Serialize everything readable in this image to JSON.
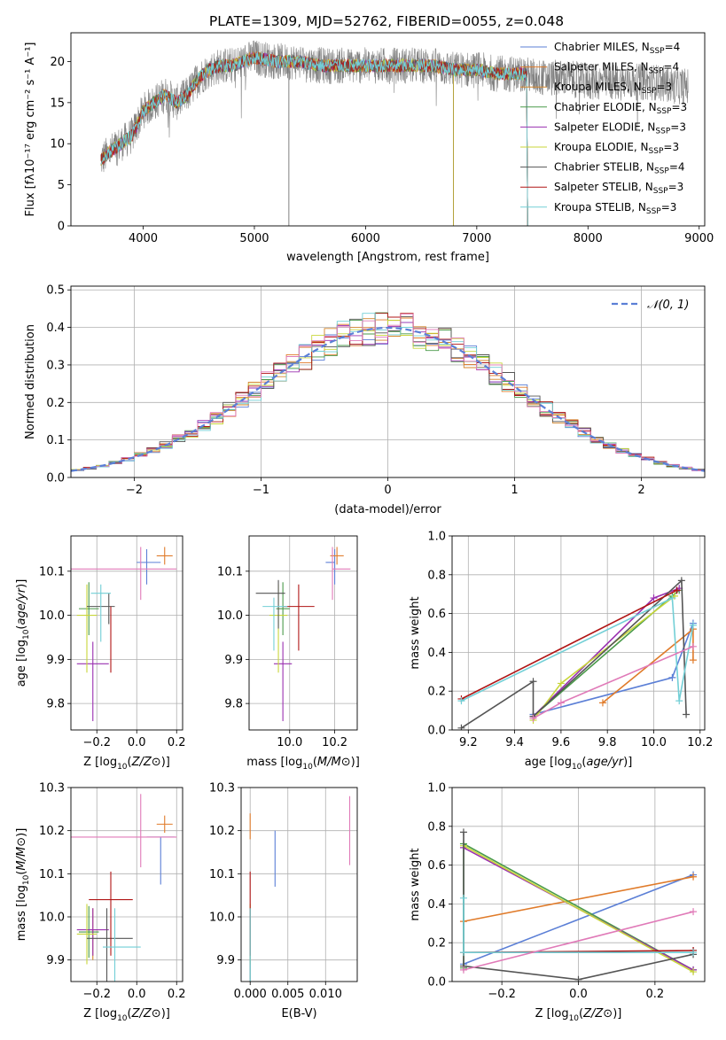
{
  "title": "PLATE=1309, MJD=52762, FIBERID=0055, z=0.048",
  "colors": {
    "Chabrier MILES": "#5b7fd6",
    "Salpeter MILES": "#e07b2a",
    "Kroupa MILES": "#d4862c",
    "Chabrier ELODIE": "#4a9a4a",
    "Salpeter ELODIE": "#9a30b0",
    "Kroupa ELODIE": "#c8d63a",
    "Chabrier STELIB": "#555555",
    "Salpeter STELIB": "#b01515",
    "Kroupa STELIB": "#72cfd6",
    "extra_pink": "#e07ab8",
    "data_gray": "#808080",
    "normal_curve": "#5b7fd6"
  },
  "chart_data": [
    {
      "id": "spectrum",
      "type": "line",
      "xlabel": "wavelength [Angstrom, rest frame]",
      "ylabel": "Flux [fλ10⁻¹⁷ erg cm⁻² s⁻¹ A⁻¹]",
      "xlim": [
        3350,
        9050
      ],
      "ylim": [
        0,
        23.5
      ],
      "xticks": [
        4000,
        5000,
        6000,
        7000,
        8000,
        9000
      ],
      "yticks": [
        0,
        5,
        10,
        15,
        20
      ],
      "legend_position": "right",
      "legend": [
        {
          "name": "Chabrier MILES",
          "nssp": "4"
        },
        {
          "name": "Salpeter MILES",
          "nssp": "4"
        },
        {
          "name": "Kroupa MILES",
          "nssp": "3"
        },
        {
          "name": "Chabrier ELODIE",
          "nssp": "3"
        },
        {
          "name": "Salpeter ELODIE",
          "nssp": "3"
        },
        {
          "name": "Kroupa ELODIE",
          "nssp": "3"
        },
        {
          "name": "Chabrier STELIB",
          "nssp": "4"
        },
        {
          "name": "Salpeter STELIB",
          "nssp": "3"
        },
        {
          "name": "Kroupa STELIB",
          "nssp": "3"
        }
      ],
      "continuum": {
        "x": [
          3620,
          3700,
          3800,
          3900,
          4000,
          4100,
          4200,
          4300,
          4400,
          4500,
          4600,
          4700,
          4800,
          4900,
          5000,
          5200,
          5400,
          5600,
          5800,
          6000,
          6200,
          6400,
          6600,
          6800,
          7000,
          7200,
          7400,
          7600,
          7800,
          8000,
          8200,
          8400,
          8600,
          8800
        ],
        "y": [
          8,
          9,
          10,
          11,
          14,
          15,
          16,
          15,
          16,
          18,
          19,
          19.5,
          19.5,
          20,
          20.5,
          20,
          20,
          19.5,
          19.5,
          19.5,
          19.5,
          19.5,
          19.5,
          19,
          19,
          18.5,
          18.5,
          18,
          18,
          17.5,
          17.5,
          17.5,
          17.5,
          17
        ]
      },
      "data_range": [
        3620,
        8900
      ],
      "model_range": [
        3620,
        7450
      ]
    },
    {
      "id": "residuals",
      "type": "histogram",
      "xlabel": "(data-model)/error",
      "ylabel": "Normed distribution",
      "xlim": [
        -2.5,
        2.5
      ],
      "ylim": [
        0,
        0.51
      ],
      "xticks": [
        -2,
        -1,
        0,
        1,
        2
      ],
      "yticks": [
        0,
        0.1,
        0.2,
        0.3,
        0.4,
        0.5
      ],
      "legend": [
        {
          "name": "𝒩(0, 1)"
        }
      ],
      "legend_position": "top-right",
      "bins": 50
    },
    {
      "id": "age-vs-Z",
      "type": "errorbar",
      "xlabel": "Z [log10(Z/Z⊙)]",
      "ylabel": "age  [log10(age/yr)]",
      "xlim": [
        -0.33,
        0.23
      ],
      "ylim": [
        9.74,
        10.18
      ],
      "xticks": [
        -0.2,
        0.0,
        0.2
      ],
      "yticks": [
        9.8,
        9.9,
        10.0,
        10.1
      ],
      "points": [
        {
          "model": "Chabrier MILES",
          "x": 0.05,
          "xerr": [
            0.05,
            0.07
          ],
          "y": 10.12,
          "yerr": [
            0.05,
            0.03
          ]
        },
        {
          "model": "Salpeter MILES",
          "x": 0.14,
          "xerr": [
            0.04,
            0.04
          ],
          "y": 10.135,
          "yerr": [
            0.02,
            0.02
          ]
        },
        {
          "model": "Kroupa MILES",
          "x": -0.13,
          "xerr": [
            0.0,
            0.0
          ],
          "y": 10.0,
          "yerr": [
            0.0,
            0.0
          ]
        },
        {
          "model": "Chabrier ELODIE",
          "x": -0.24,
          "xerr": [
            0.05,
            0.05
          ],
          "y": 10.015,
          "yerr": [
            0.06,
            0.06
          ]
        },
        {
          "model": "Salpeter ELODIE",
          "x": -0.22,
          "xerr": [
            0.08,
            0.08
          ],
          "y": 9.89,
          "yerr": [
            0.13,
            0.05
          ]
        },
        {
          "model": "Kroupa ELODIE",
          "x": -0.25,
          "xerr": [
            0.05,
            0.05
          ],
          "y": 10.0,
          "yerr": [
            0.13,
            0.07
          ]
        },
        {
          "model": "Chabrier STELIB",
          "x": -0.14,
          "xerr": [
            0.11,
            0.03
          ],
          "y": 10.02,
          "yerr": [
            0.04,
            0.03
          ]
        },
        {
          "model": "Salpeter STELIB",
          "x": -0.13,
          "xerr": [
            0.0,
            0.0
          ],
          "y": 9.97,
          "yerr": [
            0.1,
            0.05
          ]
        },
        {
          "model": "Kroupa STELIB",
          "x": -0.18,
          "xerr": [
            0.05,
            0.05
          ],
          "y": 10.05,
          "yerr": [
            0.11,
            0.02
          ]
        },
        {
          "model": "extra",
          "x": 0.02,
          "xerr": [
            0.36,
            0.18
          ],
          "y": 10.105,
          "yerr": [
            0.07,
            0.05
          ]
        }
      ]
    },
    {
      "id": "age-vs-mass",
      "type": "errorbar",
      "xlabel": "mass [log10(M/M⊙)]",
      "ylabel": "",
      "xlim": [
        9.82,
        10.3
      ],
      "ylim": [
        9.74,
        10.18
      ],
      "xticks": [
        10.0,
        10.2
      ],
      "yticks": [
        9.8,
        9.9,
        10.0,
        10.1
      ],
      "points": [
        {
          "model": "Chabrier MILES",
          "x": 10.2,
          "xerr": [
            0.04,
            0.0
          ],
          "y": 10.12,
          "yerr": [
            0.05,
            0.03
          ]
        },
        {
          "model": "Salpeter MILES",
          "x": 10.21,
          "xerr": [
            0.03,
            0.03
          ],
          "y": 10.135,
          "yerr": [
            0.02,
            0.02
          ]
        },
        {
          "model": "Kroupa MILES",
          "x": 9.95,
          "xerr": [
            0.0,
            0.0
          ],
          "y": 10.0,
          "yerr": [
            0.0,
            0.0
          ]
        },
        {
          "model": "Chabrier ELODIE",
          "x": 9.97,
          "xerr": [
            0.03,
            0.03
          ],
          "y": 10.015,
          "yerr": [
            0.06,
            0.06
          ]
        },
        {
          "model": "Salpeter ELODIE",
          "x": 9.97,
          "xerr": [
            0.04,
            0.04
          ],
          "y": 9.89,
          "yerr": [
            0.13,
            0.05
          ]
        },
        {
          "model": "Kroupa ELODIE",
          "x": 9.95,
          "xerr": [
            0.04,
            0.04
          ],
          "y": 10.0,
          "yerr": [
            0.13,
            0.07
          ]
        },
        {
          "model": "Chabrier STELIB",
          "x": 9.95,
          "xerr": [
            0.1,
            0.03
          ],
          "y": 10.05,
          "yerr": [
            0.08,
            0.03
          ]
        },
        {
          "model": "Salpeter STELIB",
          "x": 10.04,
          "xerr": [
            0.07,
            0.07
          ],
          "y": 10.02,
          "yerr": [
            0.1,
            0.05
          ]
        },
        {
          "model": "Kroupa STELIB",
          "x": 9.93,
          "xerr": [
            0.05,
            0.06
          ],
          "y": 10.02,
          "yerr": [
            0.1,
            0.02
          ]
        },
        {
          "model": "extra",
          "x": 10.19,
          "xerr": [
            0.0,
            0.08
          ],
          "y": 10.105,
          "yerr": [
            0.07,
            0.05
          ]
        }
      ]
    },
    {
      "id": "weight-vs-age",
      "type": "line",
      "xlabel": "age  [log10(age/yr)]",
      "ylabel": "mass weight",
      "xlim": [
        9.13,
        10.22
      ],
      "ylim": [
        0,
        1.0
      ],
      "xticks": [
        9.2,
        9.4,
        9.6,
        9.8,
        10.0,
        10.2
      ],
      "yticks": [
        0.0,
        0.2,
        0.4,
        0.6,
        0.8,
        1.0
      ],
      "series": [
        {
          "model": "Chabrier MILES",
          "x": [
            9.48,
            10.08,
            10.17
          ],
          "y": [
            0.08,
            0.27,
            0.55
          ]
        },
        {
          "model": "Salpeter MILES",
          "x": [
            9.78,
            10.17,
            10.17
          ],
          "y": [
            0.14,
            0.52,
            0.36
          ]
        },
        {
          "model": "Chabrier ELODIE",
          "x": [
            9.48,
            10.08,
            10.11
          ],
          "y": [
            0.07,
            0.69,
            0.72
          ]
        },
        {
          "model": "Salpeter ELODIE",
          "x": [
            9.48,
            10.0,
            10.11
          ],
          "y": [
            0.07,
            0.68,
            0.73
          ]
        },
        {
          "model": "Kroupa ELODIE",
          "x": [
            9.48,
            9.6,
            10.09
          ],
          "y": [
            0.05,
            0.24,
            0.69
          ]
        },
        {
          "model": "Chabrier STELIB",
          "x": [
            9.17,
            9.48,
            9.48,
            10.12,
            10.14
          ],
          "y": [
            0.01,
            0.25,
            0.07,
            0.77,
            0.08
          ]
        },
        {
          "model": "Salpeter STELIB",
          "x": [
            9.17,
            10.1
          ],
          "y": [
            0.16,
            0.72
          ]
        },
        {
          "model": "Kroupa STELIB",
          "x": [
            9.17,
            10.08,
            10.11,
            10.17
          ],
          "y": [
            0.15,
            0.68,
            0.15,
            0.54
          ]
        },
        {
          "model": "extra",
          "x": [
            9.48,
            9.6,
            10.17
          ],
          "y": [
            0.06,
            0.14,
            0.43
          ]
        }
      ]
    },
    {
      "id": "mass-vs-Z",
      "type": "errorbar",
      "xlabel": "Z [log10(Z/Z⊙)]",
      "ylabel": "mass [log10(M/M⊙)]",
      "xlim": [
        -0.33,
        0.23
      ],
      "ylim": [
        9.85,
        10.3
      ],
      "xticks": [
        -0.2,
        0.0,
        0.2
      ],
      "yticks": [
        9.9,
        10.0,
        10.1,
        10.2,
        10.3
      ],
      "points": [
        {
          "model": "Chabrier MILES",
          "x": 0.12,
          "xerr": [
            0.07,
            0.07
          ],
          "y": 10.185,
          "yerr": [
            0.11,
            0.0
          ]
        },
        {
          "model": "Salpeter MILES",
          "x": 0.14,
          "xerr": [
            0.04,
            0.04
          ],
          "y": 10.215,
          "yerr": [
            0.02,
            0.02
          ]
        },
        {
          "model": "Kroupa MILES",
          "x": -0.22,
          "xerr": [
            0.03,
            0.03
          ],
          "y": 9.97,
          "yerr": [
            0.07,
            0.05
          ]
        },
        {
          "model": "Chabrier ELODIE",
          "x": -0.24,
          "xerr": [
            0.05,
            0.05
          ],
          "y": 9.965,
          "yerr": [
            0.06,
            0.06
          ]
        },
        {
          "model": "Salpeter ELODIE",
          "x": -0.22,
          "xerr": [
            0.08,
            0.08
          ],
          "y": 9.97,
          "yerr": [
            0.06,
            0.05
          ]
        },
        {
          "model": "Kroupa ELODIE",
          "x": -0.25,
          "xerr": [
            0.05,
            0.05
          ],
          "y": 9.96,
          "yerr": [
            0.07,
            0.07
          ]
        },
        {
          "model": "Chabrier STELIB",
          "x": -0.15,
          "xerr": [
            0.1,
            0.13
          ],
          "y": 9.95,
          "yerr": [
            0.1,
            0.07
          ]
        },
        {
          "model": "Salpeter STELIB",
          "x": -0.13,
          "xerr": [
            0.11,
            0.11
          ],
          "y": 10.04,
          "yerr": [
            0.13,
            0.065
          ]
        },
        {
          "model": "Kroupa STELIB",
          "x": -0.11,
          "xerr": [
            0.06,
            0.13
          ],
          "y": 9.93,
          "yerr": [
            0.09,
            0.09
          ]
        },
        {
          "model": "extra",
          "x": 0.02,
          "xerr": [
            0.36,
            0.18
          ],
          "y": 10.185,
          "yerr": [
            0.07,
            0.1
          ]
        }
      ]
    },
    {
      "id": "mass-vs-EBV",
      "type": "errorbar",
      "xlabel": "E(B-V)",
      "ylabel": "",
      "xlim": [
        -0.0012,
        0.0142
      ],
      "ylim": [
        9.85,
        10.3
      ],
      "xticks": [
        0.0,
        0.005,
        0.01
      ],
      "yticks": [
        9.9,
        10.0,
        10.1,
        10.2,
        10.3
      ],
      "points": [
        {
          "model": "Chabrier MILES",
          "x": 0.0033,
          "xerr": [
            0.0,
            0.0
          ],
          "y": 10.14,
          "yerr": [
            0.07,
            0.06
          ]
        },
        {
          "model": "Salpeter MILES",
          "x": 0.0,
          "xerr": [
            0.0,
            0.0
          ],
          "y": 10.21,
          "yerr": [
            0.03,
            0.03
          ]
        },
        {
          "model": "Salpeter ELODIE",
          "x": 0.0,
          "xerr": [
            0.0,
            0.0
          ],
          "y": 9.97,
          "yerr": [
            0.06,
            0.05
          ]
        },
        {
          "model": "Kroupa ELODIE",
          "x": 0.0,
          "xerr": [
            0.0,
            0.0
          ],
          "y": 9.96,
          "yerr": [
            0.07,
            0.07
          ]
        },
        {
          "model": "Chabrier STELIB",
          "x": 0.0,
          "xerr": [
            0.0,
            0.0
          ],
          "y": 9.95,
          "yerr": [
            0.1,
            0.07
          ]
        },
        {
          "model": "Salpeter STELIB",
          "x": 0.0,
          "xerr": [
            0.0,
            0.0
          ],
          "y": 10.04,
          "yerr": [
            0.13,
            0.065
          ]
        },
        {
          "model": "Kroupa STELIB",
          "x": 0.0,
          "xerr": [
            0.0,
            0.0
          ],
          "y": 9.93,
          "yerr": [
            0.09,
            0.09
          ]
        },
        {
          "model": "extra",
          "x": 0.0132,
          "xerr": [
            0.0,
            0.0
          ],
          "y": 10.2,
          "yerr": [
            0.08,
            0.08
          ]
        }
      ]
    },
    {
      "id": "weight-vs-Z",
      "type": "line",
      "xlabel": "Z [log10(Z/Z⊙)]",
      "ylabel": "mass weight",
      "xlim": [
        -0.33,
        0.33
      ],
      "ylim": [
        0,
        1.0
      ],
      "xticks": [
        -0.2,
        0.0,
        0.2
      ],
      "yticks": [
        0.0,
        0.2,
        0.4,
        0.6,
        0.8,
        1.0
      ],
      "series": [
        {
          "model": "Chabrier MILES",
          "x": [
            -0.3,
            0.3
          ],
          "y": [
            0.09,
            0.55
          ]
        },
        {
          "model": "Salpeter MILES",
          "x": [
            -0.3,
            0.3
          ],
          "y": [
            0.31,
            0.54
          ]
        },
        {
          "model": "Chabrier ELODIE",
          "x": [
            -0.3,
            -0.3,
            0.3
          ],
          "y": [
            0.07,
            0.71,
            0.06
          ]
        },
        {
          "model": "Salpeter ELODIE",
          "x": [
            -0.3,
            0.3
          ],
          "y": [
            0.69,
            0.06
          ]
        },
        {
          "model": "Kroupa ELODIE",
          "x": [
            -0.3,
            0.3
          ],
          "y": [
            0.7,
            0.05
          ]
        },
        {
          "model": "Chabrier STELIB",
          "x": [
            -0.3,
            -0.3,
            0.0,
            0.3,
            0.3
          ],
          "y": [
            0.77,
            0.08,
            0.01,
            0.14,
            0.16
          ]
        },
        {
          "model": "Salpeter STELIB",
          "x": [
            -0.3,
            0.3
          ],
          "y": [
            0.15,
            0.16
          ]
        },
        {
          "model": "Kroupa STELIB",
          "x": [
            -0.3,
            -0.3,
            0.3
          ],
          "y": [
            0.43,
            0.15,
            0.15
          ]
        },
        {
          "model": "extra",
          "x": [
            -0.3,
            0.3
          ],
          "y": [
            0.06,
            0.36
          ]
        }
      ]
    }
  ]
}
